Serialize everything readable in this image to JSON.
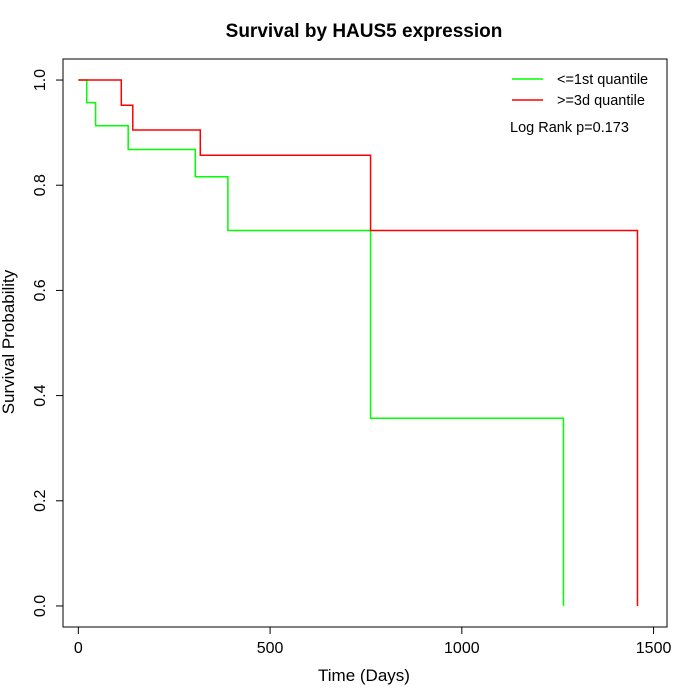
{
  "chart_data": {
    "type": "line",
    "title": "Survival by HAUS5 expression",
    "xlabel": "Time (Days)",
    "ylabel": "Survival Probability",
    "xlim": [
      -40,
      1535
    ],
    "ylim": [
      -0.04,
      1.04
    ],
    "xticks": [
      0,
      500,
      1000,
      1500
    ],
    "yticks": [
      0.0,
      0.2,
      0.4,
      0.6,
      0.8,
      1.0
    ],
    "xtick_labels": [
      "0",
      "500",
      "1000",
      "1500"
    ],
    "ytick_labels": [
      "0.0",
      "0.2",
      "0.4",
      "0.6",
      "0.8",
      "1.0"
    ],
    "grid": false,
    "legend_position": "top-right",
    "annotation": "Log Rank p=0.173",
    "series": [
      {
        "name": "<=1st quantile",
        "color": "#00ff00",
        "step": true,
        "x": [
          0,
          22,
          45,
          130,
          305,
          390,
          762,
          1265,
          1265
        ],
        "y": [
          1.0,
          0.957,
          0.913,
          0.868,
          0.816,
          0.714,
          0.357,
          0.357,
          0.0
        ]
      },
      {
        "name": ">=3d quantile",
        "color": "#ff0000",
        "step": true,
        "x": [
          0,
          112,
          142,
          318,
          762,
          1458,
          1458
        ],
        "y": [
          1.0,
          0.952,
          0.905,
          0.857,
          0.714,
          0.714,
          0.0
        ]
      }
    ]
  }
}
